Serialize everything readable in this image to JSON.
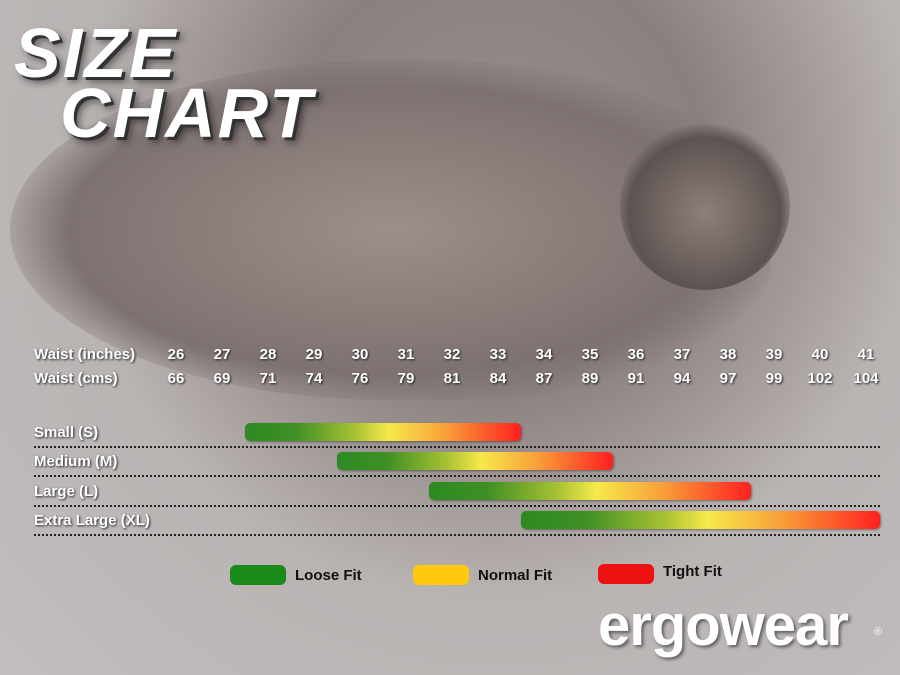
{
  "title": {
    "line1": "SIZE",
    "line2": "CHART"
  },
  "chart_data": {
    "type": "range-bar",
    "row_headers": [
      "Waist (inches)",
      "Waist (cms)"
    ],
    "inches": [
      26,
      27,
      28,
      29,
      30,
      31,
      32,
      33,
      34,
      35,
      36,
      37,
      38,
      39,
      40,
      41
    ],
    "cms": [
      66,
      69,
      71,
      74,
      76,
      79,
      81,
      84,
      87,
      89,
      91,
      94,
      97,
      99,
      102,
      104
    ],
    "sizes": [
      {
        "label": "Small (S)",
        "start": 27.5,
        "end": 33.5
      },
      {
        "label": "Medium (M)",
        "start": 29.5,
        "end": 35.5
      },
      {
        "label": "Large (L)",
        "start": 31.5,
        "end": 38.5
      },
      {
        "label": "Extra Large (XL)",
        "start": 33.5,
        "end": 41.5
      }
    ],
    "legend": [
      {
        "label": "Loose Fit",
        "color": "#1a8a1a"
      },
      {
        "label": "Normal Fit",
        "color": "#ffc90e"
      },
      {
        "label": "Tight Fit",
        "color": "#ee1111"
      }
    ]
  },
  "logo": {
    "text": "ergowear",
    "reg": "®"
  }
}
